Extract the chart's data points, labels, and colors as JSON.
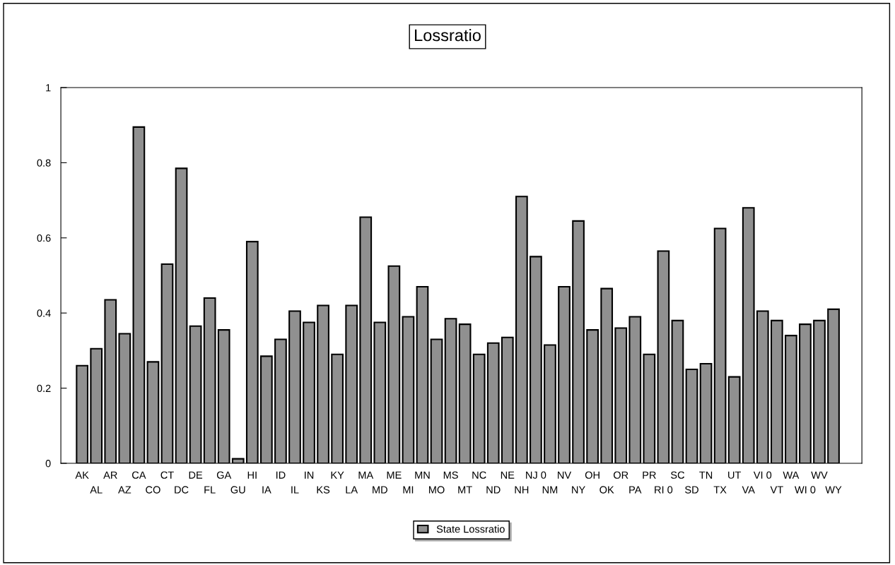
{
  "chart_data": {
    "type": "bar",
    "title": "Lossratio",
    "categories": [
      "AK",
      "AL",
      "AR",
      "AZ",
      "CA",
      "CO",
      "CT",
      "DC",
      "DE",
      "FL",
      "GA",
      "GU",
      "HI",
      "IA",
      "ID",
      "IL",
      "IN",
      "KS",
      "KY",
      "LA",
      "MA",
      "MD",
      "ME",
      "MI",
      "MN",
      "MO",
      "MS",
      "MT",
      "NC",
      "ND",
      "NE",
      "NH",
      "NJ 0",
      "NM",
      "NV",
      "NY",
      "OH",
      "OK",
      "OR",
      "PA",
      "PR",
      "RI 0",
      "SC",
      "SD",
      "TN",
      "TX",
      "UT",
      "VA",
      "VI 0",
      "VT",
      "WA",
      "WI 0",
      "WV",
      "WY"
    ],
    "series": [
      {
        "name": "State Lossratio",
        "color": "#909090",
        "values": [
          0.26,
          0.305,
          0.435,
          0.345,
          0.895,
          0.27,
          0.53,
          0.785,
          0.365,
          0.44,
          0.355,
          0.012,
          0.59,
          0.285,
          0.33,
          0.405,
          0.375,
          0.42,
          0.29,
          0.42,
          0.655,
          0.375,
          0.525,
          0.39,
          0.47,
          0.33,
          0.385,
          0.37,
          0.29,
          0.32,
          0.335,
          0.71,
          0.55,
          0.315,
          0.47,
          0.645,
          0.355,
          0.465,
          0.36,
          0.39,
          0.29,
          0.565,
          0.38,
          0.25,
          0.265,
          0.625,
          0.23,
          0.68,
          0.405,
          0.38,
          0.34,
          0.37,
          0.38,
          0.41
        ]
      }
    ],
    "ylim": [
      0,
      1
    ],
    "yticks": [
      0,
      0.2,
      0.4,
      0.6,
      0.8,
      1
    ],
    "grid": false,
    "legend": "bottom"
  }
}
